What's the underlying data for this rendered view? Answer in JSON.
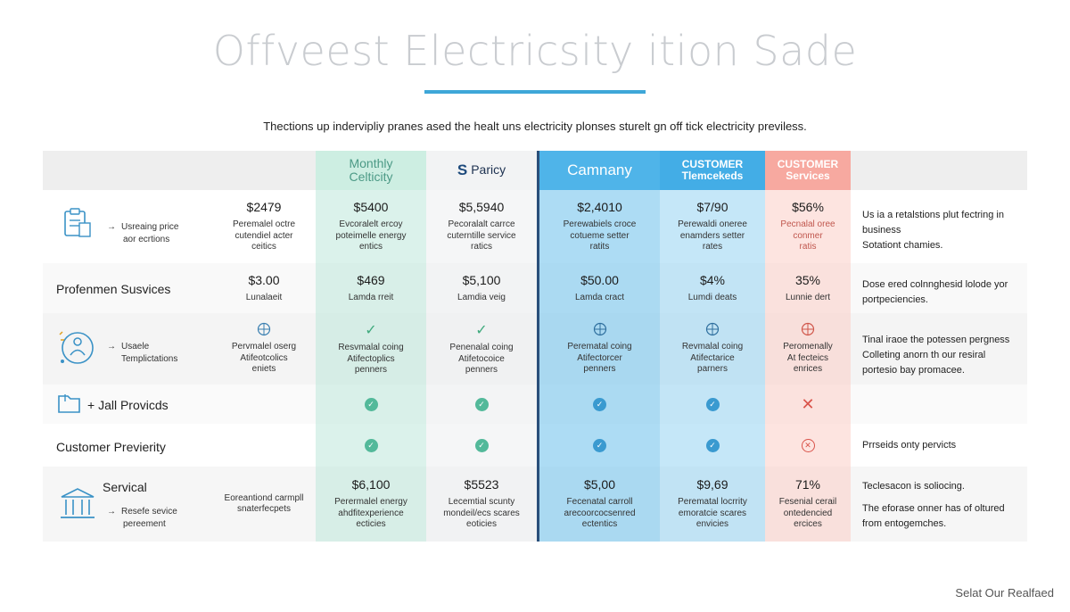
{
  "page": {
    "title": "Offveest Electricsity ition Sade",
    "intro": "Thections up indervipliy pranes ased the healt uns electricity plonses sturelt gn off tick electricity previless.",
    "footer_link": "Selat Our Realfaed"
  },
  "colors": {
    "accent": "#3ea7d8",
    "green_col": "#e3f4ee",
    "blue_col": "#bfe3f5",
    "blue_col_dark": "#7ecbee",
    "pink_col": "#fde3df",
    "header_gray": "#eeeeee"
  },
  "columns": [
    {
      "label": "Monthly Celticity"
    },
    {
      "label": "Paricy",
      "icon": "paricy-logo-icon"
    },
    {
      "label": "Camnany"
    },
    {
      "label": "CUSTOMER Tlemcekeds"
    },
    {
      "label": "CUSTOMER Services"
    }
  ],
  "rows": [
    {
      "label": "",
      "sub": [
        "Usreaing price",
        "aor ecrtions"
      ],
      "icon": "clipboard-icon",
      "base": {
        "value": "$2479",
        "desc": [
          "Peremalel octre",
          "cutendiel acter",
          "ceitics"
        ]
      },
      "cells": [
        {
          "value": "$5400",
          "desc": [
            "Evcoralelt ercoy",
            "poteimelle energy",
            "entics"
          ]
        },
        {
          "value": "$5,5940",
          "desc": [
            "Pecoralalt carrce",
            "cuterntille service",
            "ratics"
          ]
        },
        {
          "value": "$2,4010",
          "desc": [
            "Perewabiels croce",
            "cotueme setter",
            "ratits"
          ]
        },
        {
          "value": "$7/90",
          "desc": [
            "Perewaldi oneree",
            "enamders setter",
            "rates"
          ]
        },
        {
          "value": "$56%",
          "desc": [
            "Pecnalal oree",
            "conmer",
            "ratis"
          ]
        }
      ],
      "note": [
        "Us ia a retalstions plut fectring in",
        "business",
        "Sotationt chamies."
      ]
    },
    {
      "label": "Profenmen Susvices",
      "sub": [],
      "base": {
        "value": "$3.00",
        "desc": [
          "Lunalaeit"
        ]
      },
      "cells": [
        {
          "value": "$469",
          "desc": [
            "Lamda rreit"
          ]
        },
        {
          "value": "$5,100",
          "desc": [
            "Lamdia veig"
          ]
        },
        {
          "value": "$50.00",
          "desc": [
            "Lamda cract"
          ]
        },
        {
          "value": "$4%",
          "desc": [
            "Lumdi deats"
          ]
        },
        {
          "value": "35%",
          "desc": [
            "Lunnie dert"
          ]
        }
      ],
      "note": [
        "Dose ered colnnghesid lolode yor",
        "portpeciencies."
      ]
    },
    {
      "label": "",
      "sub": [
        "Usaele",
        "Templictations"
      ],
      "icon": "person-circle-icon",
      "base": {
        "value": "",
        "desc": [
          "Pervmalel oserg",
          "Atifeotcolics",
          "eniets"
        ]
      },
      "cells": [
        {
          "value": "",
          "desc": [
            "Resvmalal coing",
            "Atifectoplics",
            "penners"
          ]
        },
        {
          "value": "",
          "desc": [
            "Penenalal coing",
            "Atifetocoice",
            "penners"
          ]
        },
        {
          "value": "",
          "desc": [
            "Perematal coing",
            "Atifectorcer",
            "penners"
          ]
        },
        {
          "value": "",
          "desc": [
            "Revmalal coing",
            "Atifectarice",
            "parners"
          ]
        },
        {
          "value": "",
          "desc": [
            "Peromenally",
            "At fecteics",
            "enrices"
          ]
        }
      ],
      "note": [
        "Tinal iraoe the potessen pergness",
        "Colleting anorn th our resiral",
        "portesio bay promacee."
      ]
    },
    {
      "label": "+ Jall Provicds",
      "sub": [],
      "icon": "folder-icon",
      "note": []
    },
    {
      "label": "Customer Previerity",
      "sub": [],
      "note": [
        "Prrseids onty pervicts"
      ]
    },
    {
      "label": "Servical",
      "sub": [
        "Resefe sevice",
        "pereement"
      ],
      "icon": "bank-icon",
      "base": {
        "value": "",
        "desc": [
          "Eoreantiond carmpll",
          "snaterfecpets"
        ]
      },
      "cells": [
        {
          "value": "$6,100",
          "desc": [
            "Perermalel energy",
            "ahdfitexperience",
            "ecticies"
          ]
        },
        {
          "value": "$5523",
          "desc": [
            "Lecemtial scunty",
            "mondeil/ecs scares",
            "eoticies"
          ]
        },
        {
          "value": "$5,00",
          "desc": [
            "Fecenatal carroll",
            "arecoorcocsenred",
            "ectentics"
          ]
        },
        {
          "value": "$9,69",
          "desc": [
            "Perematal locrrity",
            "emoratcie scares",
            "envicies"
          ]
        },
        {
          "value": "71%",
          "desc": [
            "Fesenial cerail",
            "ontedencied",
            "ercices"
          ]
        }
      ],
      "note": [
        "Teclesacon is soliocing.",
        "The eforase onner has of oltured",
        "from entogemches."
      ]
    }
  ]
}
